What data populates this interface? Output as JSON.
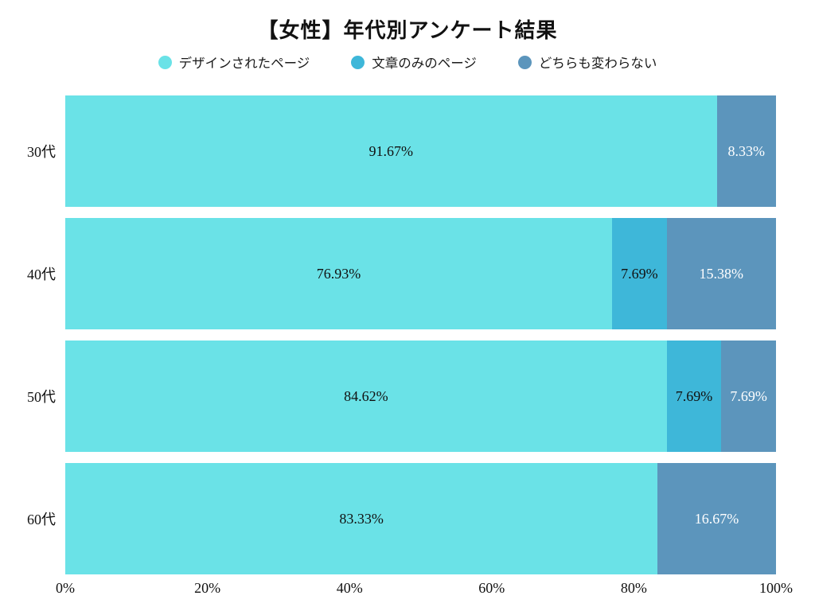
{
  "chart_data": {
    "type": "bar",
    "orientation": "horizontal",
    "stacked": true,
    "title": "【女性】年代別アンケート結果",
    "categories": [
      "30代",
      "40代",
      "50代",
      "60代"
    ],
    "series": [
      {
        "name": "デザインされたページ",
        "color": "#6AE2E7",
        "label_color": "#111111",
        "values": [
          91.67,
          76.93,
          84.62,
          83.33
        ],
        "labels": [
          "91.67%",
          "76.93%",
          "84.62%",
          "83.33%"
        ]
      },
      {
        "name": "文章のみのページ",
        "color": "#3EB7D9",
        "label_color": "#111111",
        "values": [
          0,
          7.69,
          7.69,
          0
        ],
        "labels": [
          "",
          "7.69%",
          "7.69%",
          ""
        ]
      },
      {
        "name": "どちらも変わらない",
        "color": "#5C95BC",
        "label_color": "#FFFFFF",
        "values": [
          8.33,
          15.38,
          7.69,
          16.67
        ],
        "labels": [
          "8.33%",
          "15.38%",
          "7.69%",
          "16.67%"
        ]
      }
    ],
    "x_ticks": [
      "0%",
      "20%",
      "40%",
      "60%",
      "80%",
      "100%"
    ],
    "xlim": [
      0,
      100
    ],
    "grid": false,
    "legend_position": "top",
    "background": "#ffffff"
  }
}
